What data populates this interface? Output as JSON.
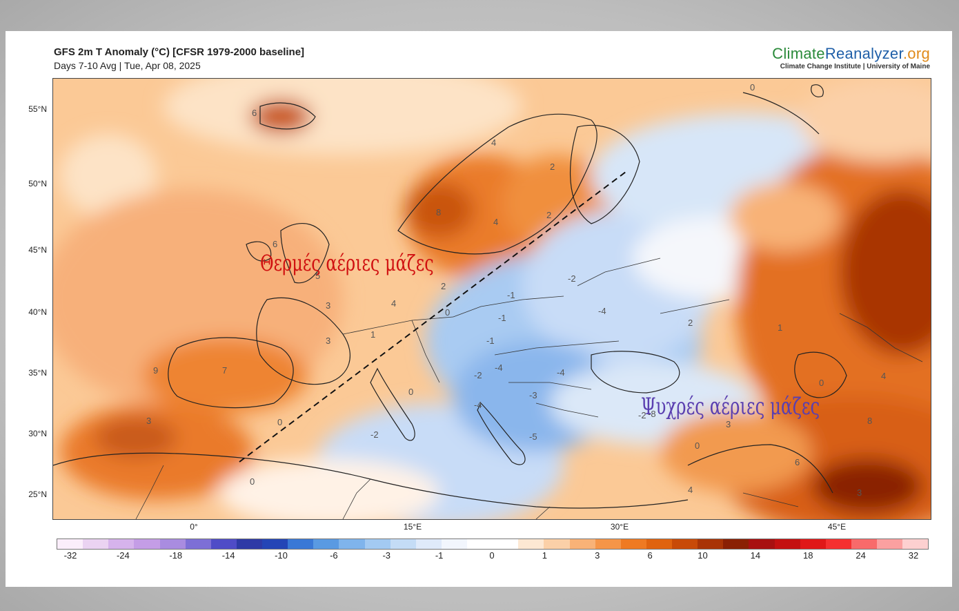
{
  "header": {
    "title": "GFS 2m T Anomaly (°C) [CFSR 1979-2000 baseline]",
    "subtitle": "Days 7-10 Avg | Tue, Apr 08, 2025"
  },
  "brand": {
    "name_part1": "Climate",
    "name_part2": "Reanalyzer",
    "name_part3": ".org",
    "subtitle": "Climate Change Institute | University of Maine",
    "colors": {
      "part1": "#2a8a3a",
      "part2": "#1f5fa8",
      "part3": "#e08a1a"
    }
  },
  "map": {
    "lat_labels": [
      "55°N",
      "50°N",
      "45°N",
      "40°N",
      "35°N",
      "30°N",
      "25°N"
    ],
    "lon_labels": [
      "0°",
      "15°E",
      "30°E",
      "45°E"
    ],
    "annotations": {
      "warm": "Θερμές αέριες μάζες",
      "cold": "Ψυχρές αέριες μάζες"
    },
    "contour_labels": [
      "6",
      "4",
      "2",
      "8",
      "4",
      "2",
      "0",
      "6",
      "5",
      "3",
      "4",
      "2",
      "0",
      "-1",
      "-2",
      "-1",
      "-1",
      "-2",
      "-4",
      "-4",
      "-4",
      "3",
      "7",
      "9",
      "3",
      "0",
      "-2",
      "0",
      "-3",
      "-4",
      "-5",
      "-8",
      "-2",
      "3",
      "0",
      "4",
      "8",
      "6",
      "3",
      "4",
      "0",
      "2",
      "1",
      "0",
      "1"
    ]
  },
  "legend": {
    "ticks": [
      "-32",
      "-24",
      "-18",
      "-14",
      "-10",
      "-6",
      "-3",
      "-1",
      "0",
      "1",
      "3",
      "6",
      "10",
      "14",
      "18",
      "24",
      "32"
    ],
    "colors": [
      "#fbeefb",
      "#ebd3f2",
      "#d6b3ec",
      "#c49de6",
      "#a98ce0",
      "#7d6fd6",
      "#4f4cc7",
      "#2e3aa6",
      "#2445b6",
      "#3a78d6",
      "#5a9ae2",
      "#7fb4ec",
      "#a3caf2",
      "#c4dcf6",
      "#dfeafa",
      "#f2f6fd",
      "#ffffff",
      "#ffffff",
      "#fde8d3",
      "#fbd0a8",
      "#f8b277",
      "#f59548",
      "#ef7a22",
      "#e0630f",
      "#c84a08",
      "#a93406",
      "#8a2004",
      "#a81010",
      "#c41010",
      "#e01818",
      "#f53030",
      "#f86a6a",
      "#fba0a0",
      "#fdd0d0"
    ]
  }
}
